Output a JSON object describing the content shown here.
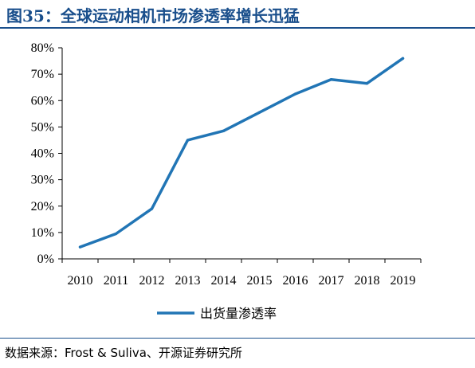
{
  "header": {
    "title": "图35：全球运动相机市场渗透率增长迅猛"
  },
  "footer": {
    "source": "数据来源：Frost & Suliva、开源证券研究所"
  },
  "colors": {
    "accent": "#1a4f8c",
    "line": "#2175b5"
  },
  "chart_data": {
    "type": "line",
    "categories": [
      "2010",
      "2011",
      "2012",
      "2013",
      "2014",
      "2015",
      "2016",
      "2017",
      "2018",
      "2019"
    ],
    "series": [
      {
        "name": "出货量渗透率",
        "values": [
          4.5,
          9.5,
          19,
          45,
          48.5,
          55.5,
          62.5,
          68,
          66.5,
          76
        ]
      }
    ],
    "ylim": [
      0,
      80
    ],
    "yticks": [
      "0%",
      "10%",
      "20%",
      "30%",
      "40%",
      "50%",
      "60%",
      "70%",
      "80%"
    ],
    "grid": false,
    "legend": "bottom",
    "xlabel": "",
    "ylabel": ""
  }
}
